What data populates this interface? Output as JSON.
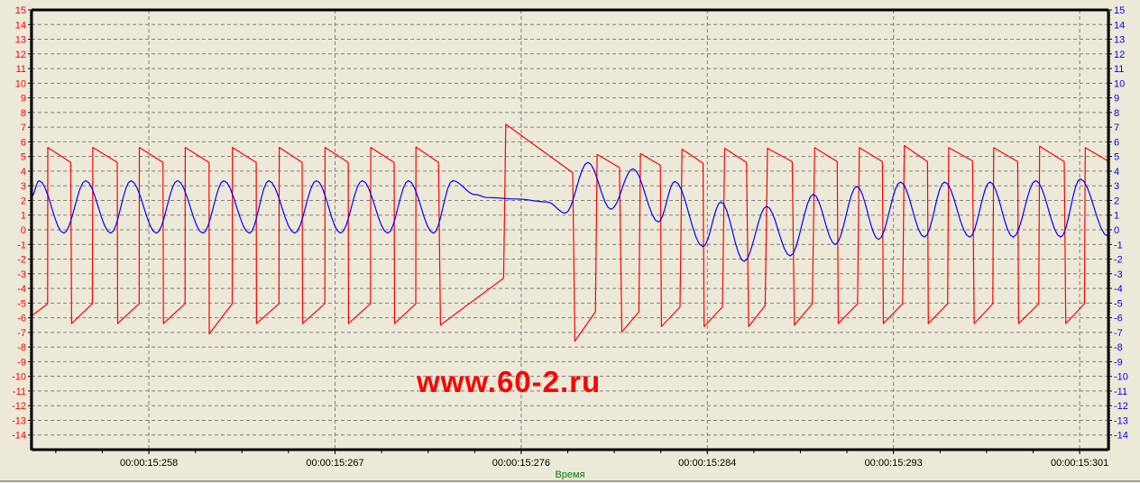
{
  "chart_data": {
    "type": "line",
    "title": "",
    "xlabel": "Время",
    "ylabel": "",
    "xlim": [
      15252.98,
      15302.73
    ],
    "ylim": [
      -15,
      15
    ],
    "y_ticks": [
      15,
      14,
      13,
      12,
      11,
      10,
      9,
      8,
      7,
      6,
      5,
      4,
      3,
      2,
      1,
      0,
      -1,
      -2,
      -3,
      -4,
      -5,
      -6,
      -7,
      -8,
      -9,
      -10,
      -11,
      -12,
      -13,
      -14
    ],
    "x_ticks": [
      {
        "t": 15258.4,
        "label": "00:00:15:258"
      },
      {
        "t": 15267.0,
        "label": "00:00:15:267"
      },
      {
        "t": 15275.6,
        "label": "00:00:15:276"
      },
      {
        "t": 15284.2,
        "label": "00:00:15:284"
      },
      {
        "t": 15292.8,
        "label": "00:00:15:293"
      },
      {
        "t": 15301.4,
        "label": "00:00:15:301"
      }
    ],
    "x_minor_step": 2.15,
    "grid": true,
    "legend": "none",
    "series": [
      {
        "color": "#FF0000",
        "axis": "left",
        "points": [
          [
            15252.98,
            -5.88
          ],
          [
            15253.72,
            -5.05
          ],
          [
            15253.73,
            5.62
          ],
          [
            15254.79,
            4.6
          ],
          [
            15254.83,
            -6.4
          ],
          [
            15255.79,
            -5.05
          ],
          [
            15255.81,
            5.62
          ],
          [
            15256.94,
            4.6
          ],
          [
            15256.96,
            -6.4
          ],
          [
            15257.95,
            -5.05
          ],
          [
            15257.96,
            5.62
          ],
          [
            15259.05,
            4.6
          ],
          [
            15259.07,
            -6.4
          ],
          [
            15260.07,
            -5.05
          ],
          [
            15260.08,
            5.62
          ],
          [
            15261.18,
            4.6
          ],
          [
            15261.19,
            -7.1
          ],
          [
            15262.25,
            -5.05
          ],
          [
            15262.26,
            5.62
          ],
          [
            15263.36,
            4.6
          ],
          [
            15263.37,
            -6.4
          ],
          [
            15264.41,
            -5.05
          ],
          [
            15264.42,
            5.62
          ],
          [
            15265.48,
            4.6
          ],
          [
            15265.5,
            -6.4
          ],
          [
            15266.53,
            -5.05
          ],
          [
            15266.54,
            5.62
          ],
          [
            15267.61,
            4.6
          ],
          [
            15267.62,
            -6.4
          ],
          [
            15268.64,
            -5.05
          ],
          [
            15268.65,
            5.62
          ],
          [
            15269.73,
            4.6
          ],
          [
            15269.75,
            -6.4
          ],
          [
            15270.73,
            -5.05
          ],
          [
            15270.74,
            5.65
          ],
          [
            15271.78,
            4.6
          ],
          [
            15271.87,
            -6.5
          ],
          [
            15274.79,
            -3.3
          ],
          [
            15274.89,
            7.2
          ],
          [
            15277.98,
            3.9
          ],
          [
            15278.08,
            -7.6
          ],
          [
            15279.03,
            -5.6
          ],
          [
            15279.11,
            5.14
          ],
          [
            15280.14,
            4.25
          ],
          [
            15280.25,
            -6.97
          ],
          [
            15281.04,
            -5.6
          ],
          [
            15281.11,
            5.2
          ],
          [
            15282.03,
            4.4
          ],
          [
            15282.08,
            -6.6
          ],
          [
            15282.94,
            -5.26
          ],
          [
            15283.03,
            5.5
          ],
          [
            15284.0,
            4.54
          ],
          [
            15284.05,
            -6.6
          ],
          [
            15284.9,
            -5.26
          ],
          [
            15285.0,
            5.56
          ],
          [
            15286.01,
            4.6
          ],
          [
            15286.11,
            -6.6
          ],
          [
            15286.87,
            -5.17
          ],
          [
            15286.98,
            5.56
          ],
          [
            15288.12,
            4.65
          ],
          [
            15288.22,
            -6.5
          ],
          [
            15289.05,
            -5.05
          ],
          [
            15289.16,
            5.6
          ],
          [
            15290.2,
            4.65
          ],
          [
            15290.25,
            -6.4
          ],
          [
            15291.14,
            -5.05
          ],
          [
            15291.22,
            5.6
          ],
          [
            15292.29,
            4.65
          ],
          [
            15292.33,
            -6.4
          ],
          [
            15293.22,
            -5.05
          ],
          [
            15293.3,
            5.75
          ],
          [
            15294.37,
            4.65
          ],
          [
            15294.41,
            -6.4
          ],
          [
            15295.3,
            -5.05
          ],
          [
            15295.35,
            5.6
          ],
          [
            15296.45,
            4.7
          ],
          [
            15296.53,
            -6.4
          ],
          [
            15297.39,
            -5.05
          ],
          [
            15297.43,
            5.6
          ],
          [
            15298.54,
            4.65
          ],
          [
            15298.58,
            -6.4
          ],
          [
            15299.51,
            -5.05
          ],
          [
            15299.55,
            5.7
          ],
          [
            15300.69,
            4.65
          ],
          [
            15300.76,
            -6.4
          ],
          [
            15301.62,
            -5.05
          ],
          [
            15301.66,
            5.6
          ],
          [
            15302.7,
            4.7
          ]
        ]
      },
      {
        "color": "#0000FF",
        "axis": "right",
        "points": [
          [
            15252.98,
            2.27
          ],
          [
            15253.33,
            3.35
          ],
          [
            15254.47,
            -0.23
          ],
          [
            15255.48,
            3.35
          ],
          [
            15256.64,
            -0.23
          ],
          [
            15257.57,
            3.35
          ],
          [
            15258.75,
            -0.23
          ],
          [
            15259.72,
            3.35
          ],
          [
            15260.9,
            -0.23
          ],
          [
            15261.86,
            3.35
          ],
          [
            15263.05,
            -0.23
          ],
          [
            15263.94,
            3.35
          ],
          [
            15265.14,
            -0.23
          ],
          [
            15266.14,
            3.35
          ],
          [
            15267.26,
            -0.23
          ],
          [
            15268.26,
            3.35
          ],
          [
            15269.44,
            -0.23
          ],
          [
            15270.39,
            3.35
          ],
          [
            15271.55,
            -0.23
          ],
          [
            15272.43,
            3.35
          ],
          [
            15273.48,
            2.4
          ],
          [
            15274.03,
            2.2
          ],
          [
            15275.4,
            2.1
          ],
          [
            15276.8,
            1.9
          ],
          [
            15277.64,
            1.14
          ],
          [
            15278.68,
            4.6
          ],
          [
            15279.75,
            1.4
          ],
          [
            15280.76,
            4.16
          ],
          [
            15281.94,
            0.53
          ],
          [
            15282.7,
            3.3
          ],
          [
            15284.0,
            -1.15
          ],
          [
            15284.83,
            1.9
          ],
          [
            15285.9,
            -2.15
          ],
          [
            15286.94,
            1.6
          ],
          [
            15288.03,
            -1.78
          ],
          [
            15289.1,
            2.42
          ],
          [
            15290.11,
            -1.0
          ],
          [
            15291.11,
            2.96
          ],
          [
            15292.11,
            -0.66
          ],
          [
            15293.12,
            3.26
          ],
          [
            15294.23,
            -0.5
          ],
          [
            15295.16,
            3.26
          ],
          [
            15296.32,
            -0.5
          ],
          [
            15297.26,
            3.26
          ],
          [
            15298.33,
            -0.5
          ],
          [
            15299.37,
            3.35
          ],
          [
            15300.53,
            -0.5
          ],
          [
            15301.43,
            3.47
          ],
          [
            15302.7,
            -0.43
          ]
        ]
      }
    ],
    "axis_colors": {
      "left": "#FF0000",
      "right": "#0000FF",
      "x": "#000000"
    }
  },
  "watermark": "www.60-2.ru"
}
